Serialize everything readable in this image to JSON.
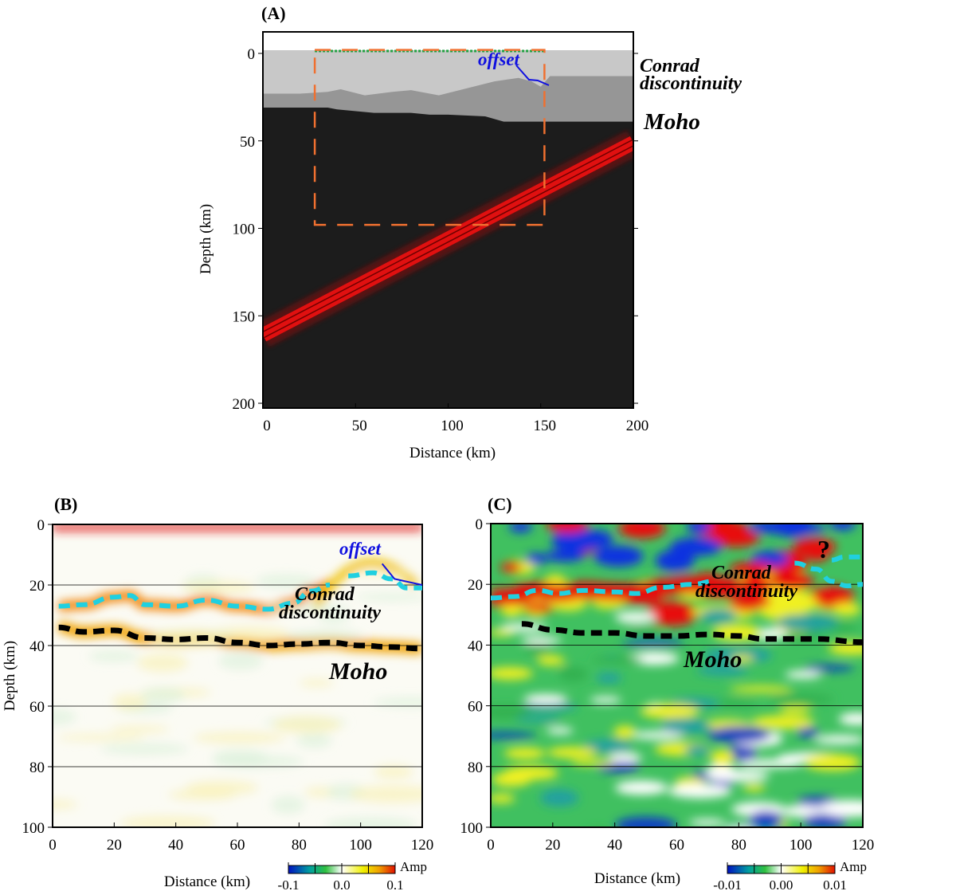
{
  "chart_data": [
    {
      "type": "heatmap",
      "panel_label": "(A)",
      "xlabel": "Distance (km)",
      "ylabel": "Depth (km)",
      "xlim": [
        0,
        200
      ],
      "ylim": [
        200,
        0
      ],
      "xticks": [
        "0",
        "50",
        "100",
        "150",
        "200"
      ],
      "yticks": [
        "0",
        "50",
        "100",
        "150",
        "200"
      ],
      "xtick_values": [
        0,
        50,
        100,
        150,
        200
      ],
      "ytick_values": [
        0,
        50,
        100,
        150,
        200
      ],
      "annotations": {
        "offset": "offset",
        "conrad_1": "Conrad",
        "conrad_2": "discontinuity",
        "moho": "Moho"
      },
      "conrad_profile": {
        "x": [
          0,
          20,
          35,
          42,
          55,
          70,
          80,
          95,
          110,
          125,
          138,
          145,
          150,
          155,
          200
        ],
        "depth": [
          23,
          23,
          22,
          20.5,
          24,
          22,
          21,
          24,
          20,
          16,
          14,
          16,
          19,
          13,
          13
        ]
      },
      "moho_profile": {
        "x": [
          0,
          35,
          40,
          60,
          80,
          90,
          100,
          120,
          130,
          200
        ],
        "depth": [
          31,
          31,
          32,
          34,
          34,
          35,
          35,
          36,
          39,
          39
        ]
      },
      "slab": {
        "x": [
          0,
          200
        ],
        "depth": [
          161,
          51
        ]
      },
      "receiver_line": {
        "x": [
          28,
          152
        ],
        "depth": 0
      },
      "study_box": {
        "x": [
          28,
          152
        ],
        "depth": [
          -2,
          98
        ]
      },
      "colors": {
        "sky": "#ffffff",
        "upper_crust": "#c8c8c8",
        "lower_crust": "#969696",
        "mantle": "#1c1c1c",
        "slab": "#e01010",
        "box": "#f07030",
        "receivers": "#20a040",
        "offset": "#1010e0"
      }
    },
    {
      "type": "heatmap",
      "panel_label": "(B)",
      "xlabel": "Distance (km)",
      "ylabel": "Depth (km)",
      "xlim": [
        0,
        120
      ],
      "ylim": [
        100,
        0
      ],
      "xticks": [
        "0",
        "20",
        "40",
        "60",
        "80",
        "100",
        "120"
      ],
      "yticks": [
        "0",
        "20",
        "40",
        "60",
        "80",
        "100"
      ],
      "xtick_values": [
        0,
        20,
        40,
        60,
        80,
        100,
        120
      ],
      "ytick_values": [
        0,
        20,
        40,
        60,
        80,
        100
      ],
      "colorbar": {
        "label": "Amp",
        "ticks": [
          "-0.1",
          "0.0",
          "0.1"
        ]
      },
      "annotations": {
        "offset": "offset",
        "conrad_1": "Conrad",
        "conrad_2": "discontinuity",
        "moho": "Moho"
      },
      "conrad_pick": {
        "x": [
          2,
          10,
          20,
          25,
          30,
          40,
          50,
          60,
          70,
          78,
          84,
          90
        ],
        "depth": [
          27,
          26.5,
          24,
          23.5,
          26.5,
          27,
          25,
          27,
          28,
          26,
          22,
          20
        ]
      },
      "conrad_pick_right": {
        "x": [
          96,
          104,
          110,
          115,
          120
        ],
        "depth": [
          17,
          16,
          18,
          21,
          21
        ]
      },
      "moho_pick": {
        "x": [
          2,
          10,
          20,
          30,
          40,
          50,
          60,
          70,
          80,
          90,
          100,
          110,
          120
        ],
        "depth": [
          34,
          35.5,
          35,
          37.5,
          38,
          37.5,
          39,
          40,
          39.5,
          39,
          40,
          40.5,
          41
        ]
      }
    },
    {
      "type": "heatmap",
      "panel_label": "(C)",
      "xlabel": "Distance (km)",
      "ylabel": "Depth (km)",
      "xlim": [
        0,
        120
      ],
      "ylim": [
        100,
        0
      ],
      "xticks": [
        "0",
        "20",
        "40",
        "60",
        "80",
        "100",
        "120"
      ],
      "yticks": [
        "0",
        "20",
        "40",
        "60",
        "80",
        "100"
      ],
      "xtick_values": [
        0,
        20,
        40,
        60,
        80,
        100,
        120
      ],
      "ytick_values": [
        0,
        20,
        40,
        60,
        80,
        100
      ],
      "colorbar": {
        "label": "Amp",
        "ticks": [
          "-0.01",
          "0.00",
          "0.01"
        ]
      },
      "annotations": {
        "question": "?",
        "conrad_1": "Conrad",
        "conrad_2": "discontinuity",
        "moho": "Moho"
      },
      "conrad_pick": {
        "x": [
          0,
          8,
          15,
          22,
          30,
          40,
          47,
          55,
          65,
          72
        ],
        "depth": [
          24.5,
          24,
          22,
          23,
          22,
          22.5,
          23,
          21,
          20,
          19
        ]
      },
      "conrad_pick_right": {
        "x": [
          98,
          105,
          110,
          115,
          120
        ],
        "depth": [
          13,
          15,
          19,
          20.5,
          20
        ]
      },
      "conrad_pick_right2": {
        "x": [
          110,
          114,
          120
        ],
        "depth": [
          12,
          11,
          11
        ]
      },
      "moho_pick": {
        "x": [
          10,
          20,
          30,
          40,
          50,
          60,
          70,
          80,
          88,
          95,
          105,
          120
        ],
        "depth": [
          33,
          35,
          36,
          36,
          37,
          37,
          36.5,
          37,
          38,
          38,
          38,
          39
        ]
      }
    }
  ]
}
